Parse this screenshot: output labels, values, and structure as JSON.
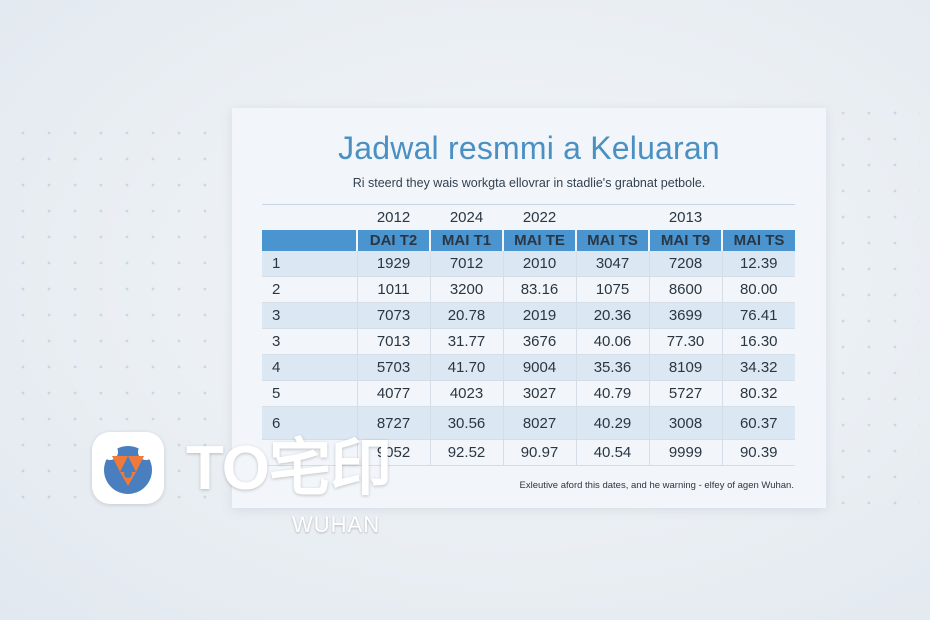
{
  "document": {
    "title": "Jadwal resmmi a Keluaran",
    "subtitle": "Ri steerd they wais workgta ellovrar in stadlie's grabnat petbole.",
    "footnote": "Exleutive aford this dates, and he warning - elfey of agen Wuhan."
  },
  "table": {
    "years": [
      "",
      "2012",
      "2024",
      "2022",
      "",
      "2013",
      ""
    ],
    "labels": [
      "",
      "DAI T2",
      "MAI T1",
      "MAI TE",
      "MAI TS",
      "MAI T9",
      "MAI TS"
    ],
    "rows": [
      [
        "1",
        "1929",
        "7012",
        "2010",
        "3047",
        "7208",
        "12.39"
      ],
      [
        "2",
        "1011",
        "3200",
        "83.16",
        "1075",
        "8600",
        "80.00"
      ],
      [
        "3",
        "7073",
        "20.78",
        "2019",
        "20.36",
        "3699",
        "76.41"
      ],
      [
        "3",
        "7013",
        "31.77",
        "3676",
        "40.06",
        "77.30",
        "16.30"
      ],
      [
        "4",
        "5703",
        "41.70",
        "9004",
        "35.36",
        "8109",
        "34.32"
      ],
      [
        "5",
        "4077",
        "4023",
        "3027",
        "40.79",
        "5727",
        "80.32"
      ],
      [
        "6",
        "8727",
        "30.56",
        "8027",
        "40.29",
        "3008",
        "60.37"
      ],
      [
        "",
        "9052",
        "92.52",
        "90.97",
        "40.54",
        "9999",
        "90.39"
      ]
    ]
  },
  "logo": {
    "text": "TO宅印",
    "sub": "WUHAN"
  }
}
